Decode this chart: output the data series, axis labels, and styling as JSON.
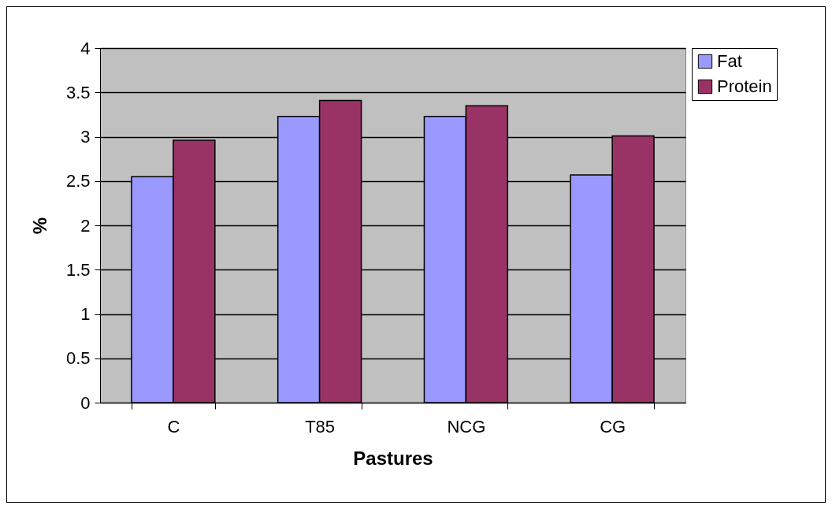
{
  "chart_data": {
    "type": "bar",
    "xlabel": "Pastures",
    "ylabel": "%",
    "categories": [
      "C",
      "T85",
      "NCG",
      "CG"
    ],
    "series": [
      {
        "name": "Fat",
        "color": "#9999ff",
        "values": [
          2.55,
          3.23,
          3.23,
          2.57
        ]
      },
      {
        "name": "Protein",
        "color": "#993366",
        "values": [
          2.96,
          3.41,
          3.35,
          3.01
        ]
      }
    ],
    "ylim": [
      0,
      4
    ],
    "yticks": [
      0,
      0.5,
      1,
      1.5,
      2,
      2.5,
      3,
      3.5,
      4
    ],
    "grid": "y",
    "legend": "right"
  }
}
